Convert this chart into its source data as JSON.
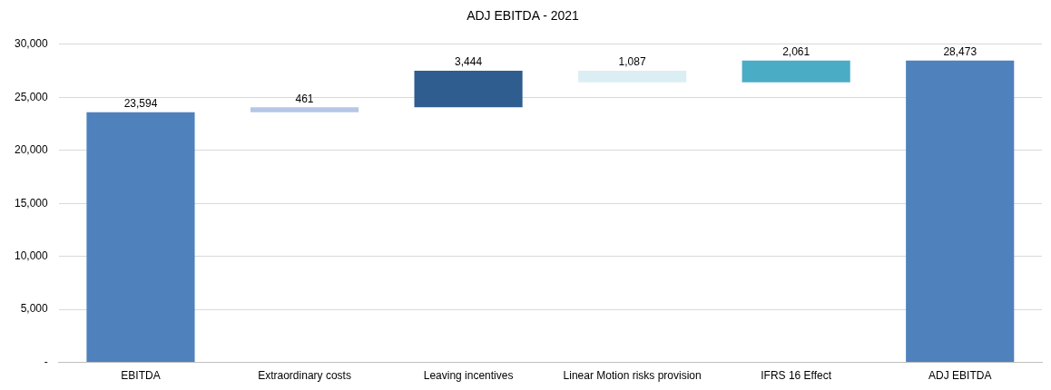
{
  "chart_data": {
    "type": "bar",
    "title": "ADJ EBITDA - 2021",
    "categories": [
      "EBITDA",
      "Extraordinary costs",
      "Leaving incentives",
      "Linear Motion risks provision",
      "IFRS 16 Effect",
      "ADJ EBITDA"
    ],
    "values": [
      23594,
      461,
      3444,
      -1087,
      2061,
      28473
    ],
    "base": [
      0,
      23594,
      24055,
      27499,
      26412,
      0
    ],
    "value_labels": [
      "23,594",
      "461",
      "3,444",
      "1,087",
      "2,061",
      "28,473"
    ],
    "colors": [
      "#4f81bd",
      "#b4c7e7",
      "#2f5d8f",
      "#dbeef3",
      "#4bacc6",
      "#4f81bd"
    ],
    "ylim": [
      0,
      30000
    ],
    "yticks": [
      {
        "value": 0,
        "label": "-"
      },
      {
        "value": 5000,
        "label": "5,000"
      },
      {
        "value": 10000,
        "label": "10,000"
      },
      {
        "value": 15000,
        "label": "15,000"
      },
      {
        "value": 20000,
        "label": "20,000"
      },
      {
        "value": 25000,
        "label": "25,000"
      },
      {
        "value": 30000,
        "label": "30,000"
      }
    ],
    "grid": "y",
    "legend": false
  }
}
